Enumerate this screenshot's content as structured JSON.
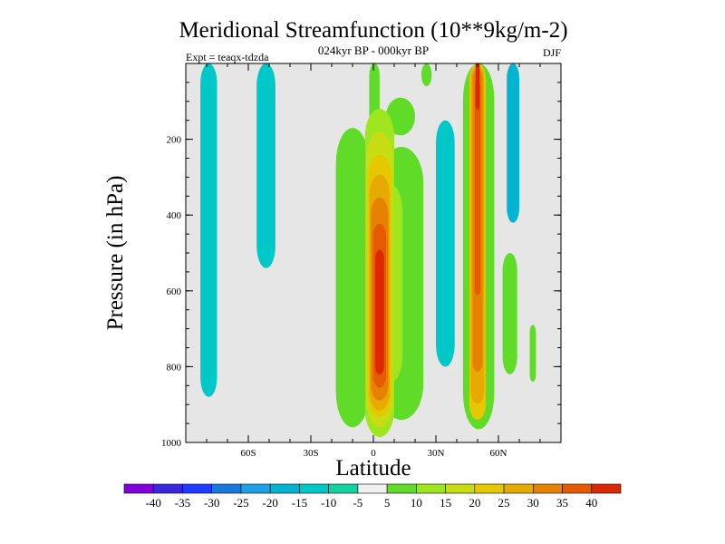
{
  "chart_data": {
    "type": "heatmap",
    "title": "Meridional Streamfunction (10**9kg/m-2)",
    "subtitle": "024kyr BP - 000kyr BP",
    "left_label": "Expt = teaqx-tdzda",
    "right_label": "DJF",
    "xlabel": "Latitude",
    "ylabel": "Pressure (in hPa)",
    "xlim": [
      -90,
      90
    ],
    "ylim": [
      1000,
      0
    ],
    "x_ticks": [
      {
        "value": -60,
        "label": "60S"
      },
      {
        "value": -30,
        "label": "30S"
      },
      {
        "value": 0,
        "label": "0"
      },
      {
        "value": 30,
        "label": "30N"
      },
      {
        "value": 60,
        "label": "60N"
      }
    ],
    "y_ticks": [
      {
        "value": 200,
        "label": "200"
      },
      {
        "value": 400,
        "label": "400"
      },
      {
        "value": 600,
        "label": "600"
      },
      {
        "value": 800,
        "label": "800"
      },
      {
        "value": 1000,
        "label": "1000"
      }
    ],
    "levels": [
      -40,
      -35,
      -30,
      -25,
      -20,
      -15,
      -10,
      -5,
      5,
      10,
      15,
      20,
      25,
      30,
      35,
      40
    ],
    "level_labels": [
      "-40",
      "-35",
      "-30",
      "-25",
      "-20",
      "-15",
      "-10",
      "-5",
      "5",
      "10",
      "15",
      "20",
      "25",
      "30",
      "35",
      "40"
    ],
    "colors": [
      "#8200dc",
      "#3c28dc",
      "#1e3cff",
      "#1478dc",
      "#1ea0e6",
      "#00b4d2",
      "#00c8c8",
      "#14d2a0",
      "#f0f0f0",
      "#60dc28",
      "#a0e61e",
      "#c8dc14",
      "#e6c800",
      "#e6aa00",
      "#e68200",
      "#e65a00",
      "#dc2800"
    ],
    "background_color": "#e6e6e6",
    "features": [
      {
        "name": "sh-cell-west",
        "lat": [
          -83,
          -75
        ],
        "p": [
          0,
          880
        ],
        "value": -12
      },
      {
        "name": "sh-cell-mid",
        "lat": [
          -56,
          -47
        ],
        "p": [
          0,
          540
        ],
        "value": -12
      },
      {
        "name": "green-sh-flank",
        "lat": [
          -18,
          -2
        ],
        "p": [
          170,
          960
        ],
        "value": 8
      },
      {
        "name": "green-top-sh",
        "lat": [
          -2,
          3
        ],
        "p": [
          0,
          170
        ],
        "value": 8
      },
      {
        "name": "green-top-nh",
        "lat": [
          6,
          20
        ],
        "p": [
          90,
          190
        ],
        "value": 8
      },
      {
        "name": "green-patch-upper",
        "lat": [
          23,
          28
        ],
        "p": [
          0,
          60
        ],
        "value": 8
      },
      {
        "name": "green-nh-flank",
        "lat": [
          3,
          24
        ],
        "p": [
          220,
          940
        ],
        "value": 8
      },
      {
        "name": "yellow-eq",
        "lat": [
          3,
          14
        ],
        "p": [
          320,
          840
        ],
        "value": 14
      },
      {
        "name": "eq-main-cell",
        "lat": [
          -4,
          10
        ],
        "p": [
          120,
          985
        ],
        "value": 42
      },
      {
        "name": "nh-cell-cyan",
        "lat": [
          30,
          39
        ],
        "p": [
          150,
          800
        ],
        "value": -15
      },
      {
        "name": "nh-cell-green",
        "lat": [
          43,
          58
        ],
        "p": [
          0,
          965
        ],
        "value": 8
      },
      {
        "name": "nh-cell-core",
        "lat": [
          46,
          54
        ],
        "p": [
          0,
          940
        ],
        "value": 38
      },
      {
        "name": "nh-cell-east",
        "lat": [
          64,
          70
        ],
        "p": [
          0,
          420
        ],
        "value": -20
      },
      {
        "name": "nh-cell-east-green",
        "lat": [
          62,
          69
        ],
        "p": [
          500,
          820
        ],
        "value": 8
      },
      {
        "name": "green-small-east",
        "lat": [
          75,
          78
        ],
        "p": [
          690,
          840
        ],
        "value": 8
      }
    ]
  }
}
